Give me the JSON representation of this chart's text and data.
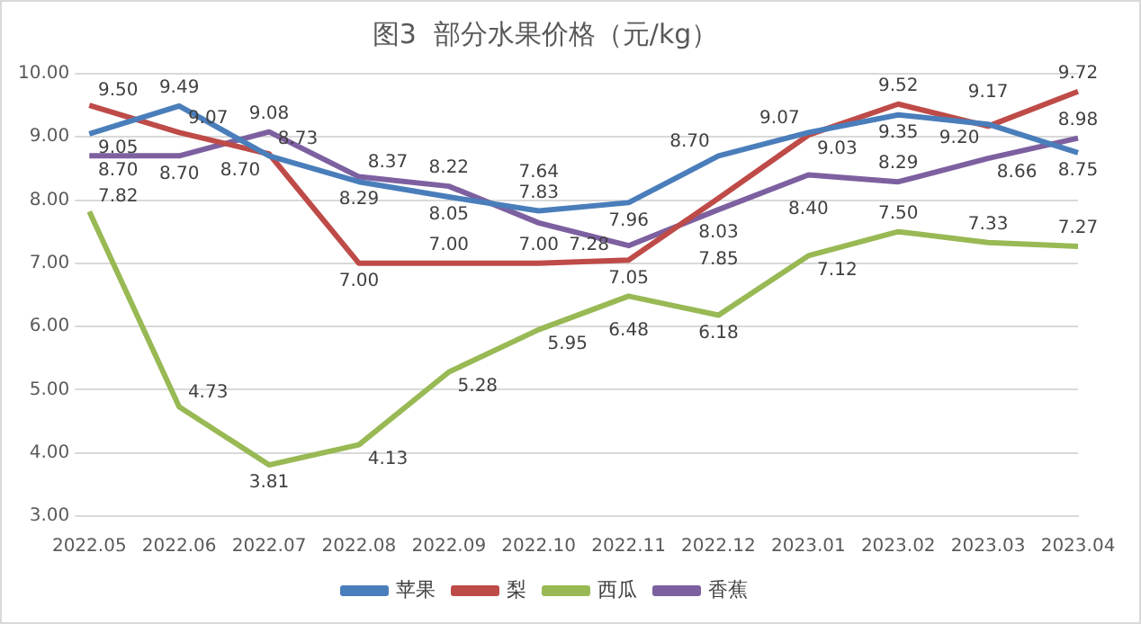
{
  "chart_data": {
    "type": "line",
    "title": "图3  部分水果价格（元/kg）",
    "categories": [
      "2022.05",
      "2022.06",
      "2022.07",
      "2022.08",
      "2022.09",
      "2022.10",
      "2022.11",
      "2022.12",
      "2023.01",
      "2023.02",
      "2023.03",
      "2023.04"
    ],
    "series": [
      {
        "name": "苹果",
        "color": "#4a7ebb",
        "values": [
          9.05,
          9.49,
          8.7,
          8.29,
          8.05,
          7.83,
          7.96,
          8.7,
          9.07,
          9.35,
          9.2,
          8.75
        ],
        "value_labels": [
          "9.05",
          "9.49",
          "8.70",
          "8.29",
          "8.05",
          "7.83",
          "7.96",
          "8.70",
          "9.07",
          "9.35",
          "9.20",
          "8.75"
        ]
      },
      {
        "name": "梨",
        "color": "#be4b48",
        "values": [
          9.5,
          9.07,
          8.73,
          7.0,
          7.0,
          7.0,
          7.05,
          8.03,
          9.03,
          9.52,
          9.17,
          9.72
        ],
        "value_labels": [
          "9.50",
          "9.07",
          "8.73",
          "7.00",
          "7.00",
          "7.00",
          "7.05",
          "8.03",
          "9.03",
          "9.52",
          "9.17",
          "9.72"
        ]
      },
      {
        "name": "西瓜",
        "color": "#98b954",
        "values": [
          7.82,
          4.73,
          3.81,
          4.13,
          5.28,
          5.95,
          6.48,
          6.18,
          7.12,
          7.5,
          7.33,
          7.27
        ],
        "value_labels": [
          "7.82",
          "4.73",
          "3.81",
          "4.13",
          "5.28",
          "5.95",
          "6.48",
          "6.18",
          "7.12",
          "7.50",
          "7.33",
          "7.27"
        ]
      },
      {
        "name": "香蕉",
        "color": "#7d60a0",
        "values": [
          8.7,
          8.7,
          9.08,
          8.37,
          8.22,
          7.64,
          7.28,
          7.85,
          8.4,
          8.29,
          8.66,
          8.98
        ],
        "value_labels": [
          "8.70",
          "8.70",
          "9.08",
          "8.37",
          "8.22",
          "7.64",
          "7.28",
          "7.85",
          "8.40",
          "8.29",
          "8.66",
          "8.98"
        ]
      }
    ],
    "ylim": [
      3,
      10
    ],
    "yticks": [
      {
        "value": 3,
        "label": "3.00"
      },
      {
        "value": 4,
        "label": "4.00"
      },
      {
        "value": 5,
        "label": "5.00"
      },
      {
        "value": 6,
        "label": "6.00"
      },
      {
        "value": 7,
        "label": "7.00"
      },
      {
        "value": 8,
        "label": "8.00"
      },
      {
        "value": 9,
        "label": "9.00"
      },
      {
        "value": 10,
        "label": "10.00"
      }
    ],
    "grid": "y",
    "legend": "bottom",
    "marker": "none",
    "line_style": "solid"
  }
}
